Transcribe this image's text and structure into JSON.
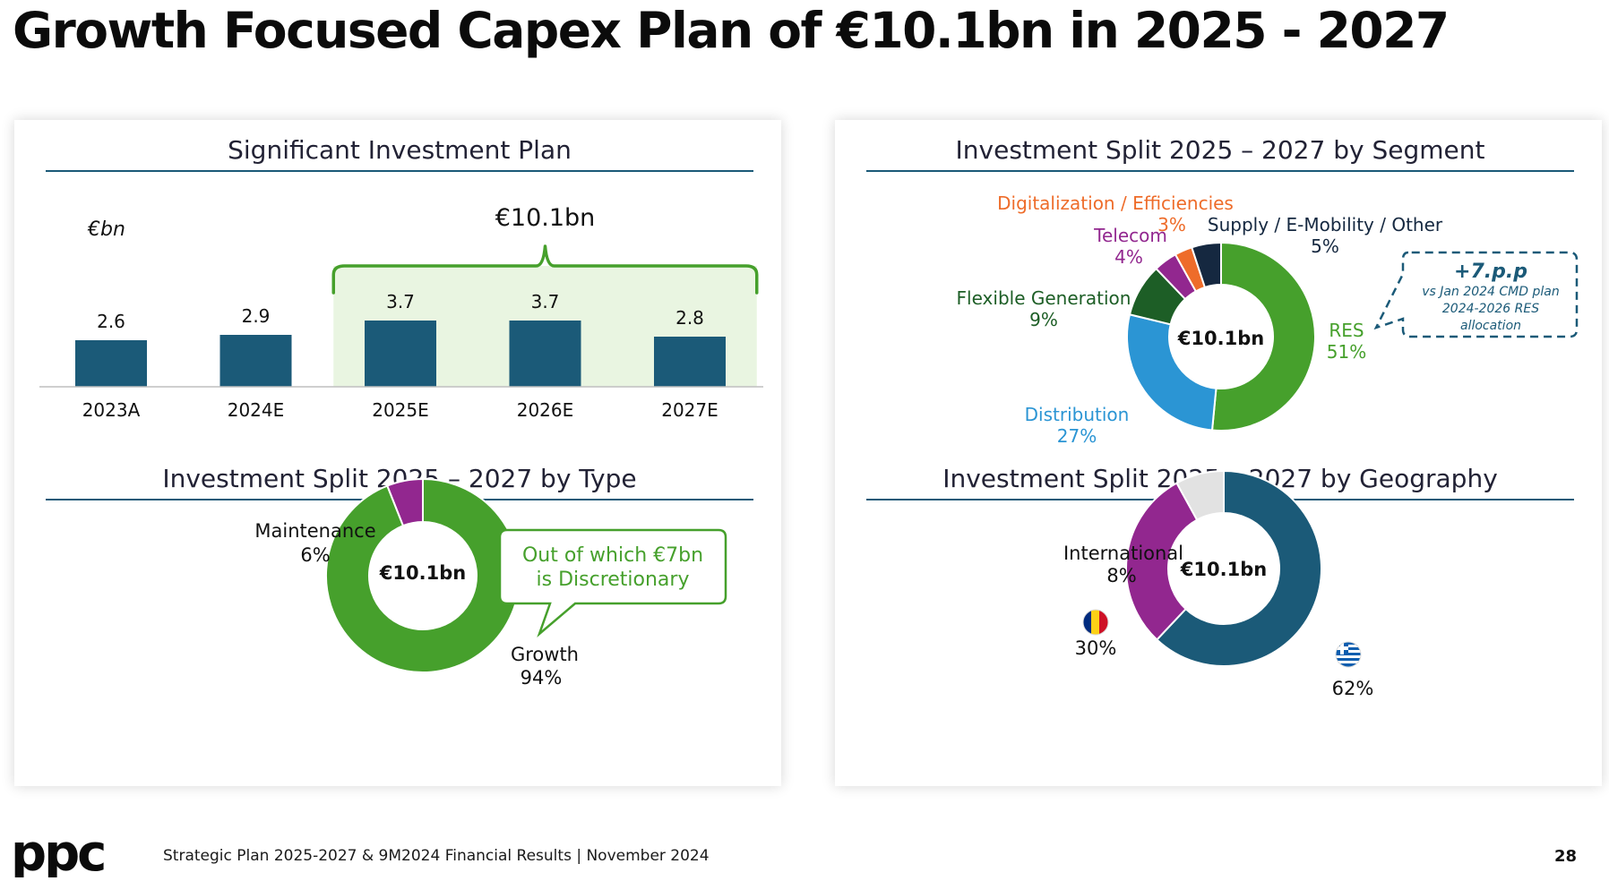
{
  "page": {
    "title": "Growth Focused Capex Plan of €10.1bn in 2025 - 2027",
    "footer_text": "Strategic Plan 2025-2027 & 9M2024 Financial Results | November 2024",
    "page_number": "28",
    "logo_text": "ppc"
  },
  "colors": {
    "navy": "#1b5a78",
    "green": "#46a02c",
    "dark_green": "#1d5e26",
    "blue": "#2b95d4",
    "purple": "#92278f",
    "orange": "#ee6c2a",
    "dark_navy": "#152840",
    "light_grey": "#e2e2e2",
    "shade_green": "#e9f5e1",
    "dashed_border": "#1b5a78"
  },
  "chart_data": [
    {
      "type": "bar",
      "title": "Significant Investment Plan",
      "ylabel": "€bn",
      "categories": [
        "2023A",
        "2024E",
        "2025E",
        "2026E",
        "2027E"
      ],
      "values": [
        2.6,
        2.9,
        3.7,
        3.7,
        2.8
      ],
      "value_labels": [
        "2.6",
        "2.9",
        "3.7",
        "3.7",
        "2.8"
      ],
      "bracket_label": "€10.1bn",
      "bracket_categories": [
        "2025E",
        "2026E",
        "2027E"
      ]
    },
    {
      "type": "pie",
      "title": "Investment Split 2025 – 2027 by Type",
      "center_label": "€10.1bn",
      "slices": [
        {
          "name": "Growth",
          "value": 94,
          "label": "94%",
          "color": "#46a02c"
        },
        {
          "name": "Maintenance",
          "value": 6,
          "label": "6%",
          "color": "#92278f"
        }
      ],
      "callout": "Out of which €7bn is Discretionary"
    },
    {
      "type": "pie",
      "title": "Investment Split 2025 – 2027 by Segment",
      "center_label": "€10.1bn",
      "slices": [
        {
          "name": "RES",
          "value": 51,
          "label": "51%",
          "color": "#46a02c"
        },
        {
          "name": "Distribution",
          "value": 27,
          "label": "27%",
          "color": "#2b95d4"
        },
        {
          "name": "Flexible Generation",
          "value": 9,
          "label": "9%",
          "color": "#1d5e26"
        },
        {
          "name": "Telecom",
          "value": 4,
          "label": "4%",
          "color": "#92278f"
        },
        {
          "name": "Digitalization / Efficiencies",
          "value": 3,
          "label": "3%",
          "color": "#ee6c2a"
        },
        {
          "name": "Supply / E-Mobility / Other",
          "value": 5,
          "label": "5%",
          "color": "#152840"
        }
      ],
      "callout": {
        "headline": "+7.p.p",
        "line1": "vs Jan 2024 CMD plan",
        "line2": "2024-2026 RES",
        "line3": "allocation"
      }
    },
    {
      "type": "pie",
      "title": "Investment Split 2025 – 2027 by Geography",
      "center_label": "€10.1bn",
      "slices": [
        {
          "name": "Greece",
          "value": 62,
          "label": "62%",
          "color": "#1b5a78",
          "icon": "greece-flag-icon"
        },
        {
          "name": "Romania",
          "value": 30,
          "label": "30%",
          "color": "#92278f",
          "icon": "romania-flag-icon"
        },
        {
          "name": "International",
          "value": 8,
          "label": "8%",
          "color": "#e2e2e2"
        }
      ]
    }
  ]
}
